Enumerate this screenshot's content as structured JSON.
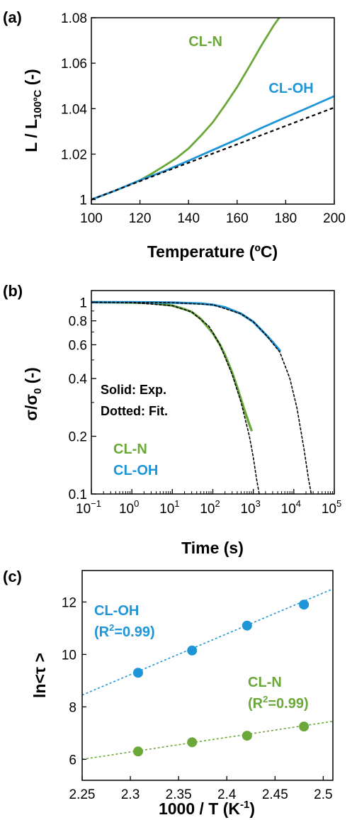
{
  "colors": {
    "green": "#6aa83a",
    "blue": "#1e95d6",
    "fit": "#000000"
  },
  "chart_data": [
    {
      "type": "line",
      "panel_label": "(a)",
      "xlabel": "Temperature (ºC)",
      "ylabel_main": "L / L",
      "ylabel_sub": "100ºC",
      "ylabel_tail": " (-)",
      "xlim": [
        100,
        200
      ],
      "ylim": [
        0.998,
        1.08
      ],
      "xticks": [
        100,
        120,
        140,
        160,
        180,
        200
      ],
      "xtick_labels": [
        "100",
        "120",
        "140",
        "160",
        "180",
        "200"
      ],
      "yticks": [
        1,
        1.02,
        1.04,
        1.06,
        1.08
      ],
      "ytick_labels": [
        "1",
        "1.02",
        "1.04",
        "1.06",
        "1.08"
      ],
      "grid": false,
      "series": [
        {
          "name": "CL-N",
          "color": "green",
          "x": [
            100,
            110,
            120,
            125,
            130,
            135,
            140,
            145,
            150,
            155,
            160,
            165,
            170,
            175,
            178
          ],
          "y": [
            1.0,
            1.004,
            1.0085,
            1.0115,
            1.0148,
            1.0182,
            1.0225,
            1.028,
            1.034,
            1.0415,
            1.0495,
            1.0585,
            1.0678,
            1.0765,
            1.081
          ]
        },
        {
          "name": "CL-OH",
          "color": "blue",
          "x": [
            100,
            110,
            120,
            130,
            140,
            150,
            160,
            170,
            180,
            190,
            200
          ],
          "y": [
            1.0,
            1.004,
            1.0085,
            1.0125,
            1.0171,
            1.0218,
            1.0265,
            1.0315,
            1.0362,
            1.0408,
            1.0455
          ]
        },
        {
          "name": "",
          "color": "fit",
          "dashed": true,
          "x": [
            100,
            200
          ],
          "y": [
            1.0,
            1.0405
          ]
        }
      ],
      "annotations": [
        {
          "text": "CL-N",
          "color": "green",
          "x": 140,
          "y": 1.0675
        },
        {
          "text": "CL-OH",
          "color": "blue",
          "x": 173,
          "y": 1.047
        }
      ]
    },
    {
      "type": "line",
      "panel_label": "(b)",
      "xlabel": "Time (s)",
      "ylabel_main": "σ/σ",
      "ylabel_sub": "0",
      "ylabel_tail": " (-)",
      "xscale": "log",
      "yscale": "log",
      "xlim": [
        0.1,
        100000
      ],
      "ylim": [
        0.1,
        1.15
      ],
      "xticks": [
        0.1,
        1,
        10,
        100,
        1000,
        10000,
        100000
      ],
      "xtick_exponents": [
        "−1",
        "0",
        "1",
        "2",
        "3",
        "4",
        "5"
      ],
      "xtick_base": "10",
      "yticks": [
        0.1,
        0.2,
        0.4,
        0.6,
        0.8,
        1
      ],
      "ytick_labels": [
        "0.1",
        "0.2",
        "0.4",
        "0.6",
        "0.8",
        "1"
      ],
      "grid": false,
      "series": [
        {
          "name": "CL-N",
          "color": "green",
          "x": [
            0.1,
            1,
            3,
            10,
            20,
            30,
            50,
            80,
            100,
            150,
            200,
            300,
            400,
            500,
            600,
            700,
            800,
            900
          ],
          "y": [
            1.0,
            0.995,
            0.99,
            0.96,
            0.92,
            0.89,
            0.82,
            0.73,
            0.69,
            0.6,
            0.53,
            0.43,
            0.36,
            0.31,
            0.275,
            0.25,
            0.23,
            0.215
          ]
        },
        {
          "name": "CL-OH",
          "color": "blue",
          "x": [
            0.1,
            1,
            10,
            50,
            100,
            200,
            500,
            1000,
            2000,
            3000,
            4500
          ],
          "y": [
            1.0,
            1.0,
            0.995,
            0.985,
            0.97,
            0.94,
            0.87,
            0.79,
            0.68,
            0.62,
            0.56
          ]
        },
        {
          "name": "",
          "color": "fit",
          "dashed": true,
          "x": [
            0.1,
            1,
            10,
            30,
            80,
            150,
            300,
            500,
            800,
            1000,
            1200,
            1400
          ],
          "y": [
            1.0,
            0.995,
            0.96,
            0.89,
            0.75,
            0.6,
            0.42,
            0.3,
            0.2,
            0.155,
            0.12,
            0.1
          ]
        },
        {
          "name": "",
          "color": "fit",
          "dashed": true,
          "x": [
            0.1,
            10,
            100,
            500,
            1000,
            2000,
            4500,
            8000,
            12000,
            18000,
            23000,
            27000
          ],
          "y": [
            1.0,
            0.995,
            0.97,
            0.87,
            0.79,
            0.68,
            0.55,
            0.4,
            0.28,
            0.17,
            0.12,
            0.1
          ]
        }
      ],
      "notes": [
        "Solid: Exp.",
        "Dotted: Fit."
      ],
      "annotations": [
        {
          "text": "CL-N",
          "color": "green"
        },
        {
          "text": "CL-OH",
          "color": "blue"
        }
      ]
    },
    {
      "type": "scatter",
      "panel_label": "(c)",
      "xlabel_main": "1000 / T (K",
      "xlabel_sup": "-1",
      "xlabel_tail": ")",
      "ylabel": "ln<τ >",
      "xlim": [
        2.25,
        2.51
      ],
      "ylim": [
        5.2,
        13.2
      ],
      "xticks": [
        2.25,
        2.3,
        2.35,
        2.4,
        2.45,
        2.5
      ],
      "xtick_labels": [
        "2.25",
        "2.3",
        "2.35",
        "2.4",
        "2.45",
        "2.5"
      ],
      "yticks": [
        6,
        8,
        10,
        12
      ],
      "ytick_labels": [
        "6",
        "8",
        "10",
        "12"
      ],
      "grid": false,
      "series": [
        {
          "name": "CL-OH",
          "color": "blue",
          "x": [
            2.308,
            2.364,
            2.421,
            2.48
          ],
          "y": [
            9.3,
            10.15,
            11.1,
            11.9
          ],
          "fit": {
            "x": [
              2.25,
              2.51
            ],
            "y": [
              8.45,
              12.5
            ]
          }
        },
        {
          "name": "CL-N",
          "color": "green",
          "x": [
            2.308,
            2.364,
            2.421,
            2.48
          ],
          "y": [
            6.3,
            6.65,
            6.9,
            7.25
          ],
          "fit": {
            "x": [
              2.25,
              2.51
            ],
            "y": [
              6.0,
              7.45
            ]
          }
        }
      ],
      "annotations": [
        {
          "text": "CL-OH",
          "color": "blue"
        },
        {
          "text": "(R",
          "sup": "2",
          "tail": "=0.99)",
          "color": "blue"
        },
        {
          "text": "CL-N",
          "color": "green"
        },
        {
          "text": "(R",
          "sup": "2",
          "tail": "=0.99)",
          "color": "green"
        }
      ]
    }
  ]
}
